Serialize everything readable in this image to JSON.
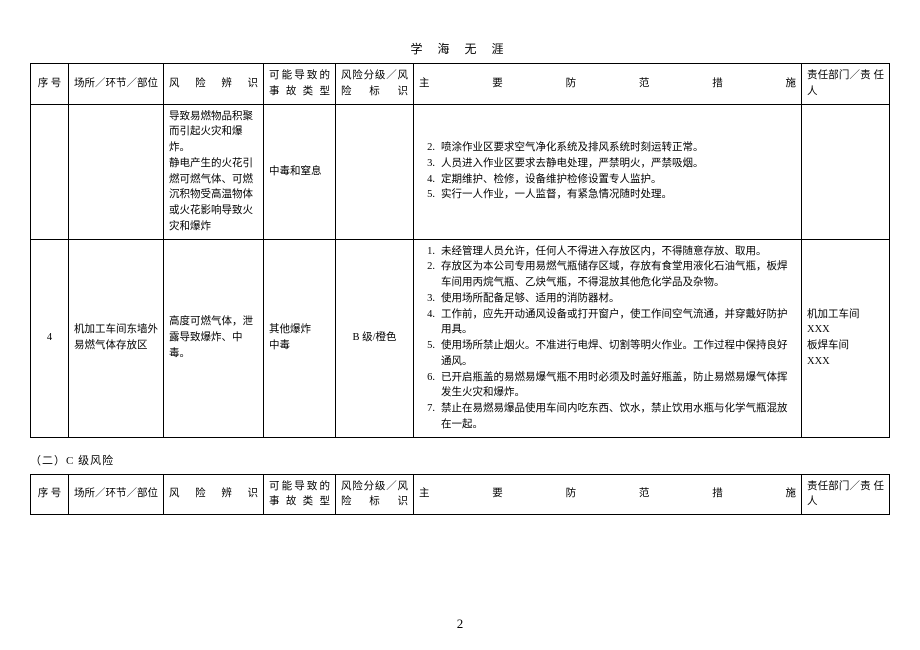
{
  "doc": {
    "header": "学 海 无 涯",
    "page_number": "2"
  },
  "headers": {
    "seq": "序 号",
    "loc": "场所／环节／部位",
    "risk": "风 险 辨 识",
    "acc": "可能导致的事故类型",
    "level": "风险分级／风险标识",
    "measure": "主 要 防 范 措 施",
    "dept": "责任部门／责 任 人"
  },
  "row3": {
    "risk": "导致易燃物品积聚而引起火灾和爆炸。\n静电产生的火花引燃可燃气体、可燃沉积物受高温物体或火花影响导致火灾和爆炸",
    "acc": "中毒和窒息",
    "measures": [
      {
        "n": "2.",
        "t": "喷涂作业区要求空气净化系统及排风系统时刻运转正常。"
      },
      {
        "n": "3.",
        "t": "人员进入作业区要求去静电处理，严禁明火，严禁吸烟。"
      },
      {
        "n": "4.",
        "t": "定期维护、检修，设备维护检修设置专人监护。"
      },
      {
        "n": "5.",
        "t": "实行一人作业，一人监督，有紧急情况随时处理。"
      }
    ]
  },
  "row4": {
    "seq": "4",
    "loc": "机加工车间东墙外易燃气体存放区",
    "risk": "高度可燃气体，泄露导致爆炸、中毒。",
    "acc": "其他爆炸\n中毒",
    "level": "B 级/橙色",
    "measures": [
      {
        "n": "1.",
        "t": "未经管理人员允许，任何人不得进入存放区内，不得随意存放、取用。"
      },
      {
        "n": "2.",
        "t": "存放区为本公司专用易燃气瓶储存区域，存放有食堂用液化石油气瓶，板焊车间用丙烷气瓶、乙炔气瓶，不得混放其他危化学品及杂物。"
      },
      {
        "n": "3.",
        "t": "使用场所配备足够、适用的消防器材。"
      },
      {
        "n": "4.",
        "t": "工作前，应先开动通风设备或打开窗户，使工作间空气流通，并穿戴好防护用具。"
      },
      {
        "n": "5.",
        "t": "使用场所禁止烟火。不准进行电焊、切割等明火作业。工作过程中保持良好通风。"
      },
      {
        "n": "6.",
        "t": "已开启瓶盖的易燃易爆气瓶不用时必须及时盖好瓶盖，防止易燃易爆气体挥发生火灾和爆炸。"
      },
      {
        "n": "7.",
        "t": "禁止在易燃易爆品使用车间内吃东西、饮水，禁止饮用水瓶与化学气瓶混放在一起。"
      }
    ],
    "dept": "机加工车间\nXXX\n板焊车间\nXXX"
  },
  "section2": {
    "title": "（二）C 级风险"
  }
}
